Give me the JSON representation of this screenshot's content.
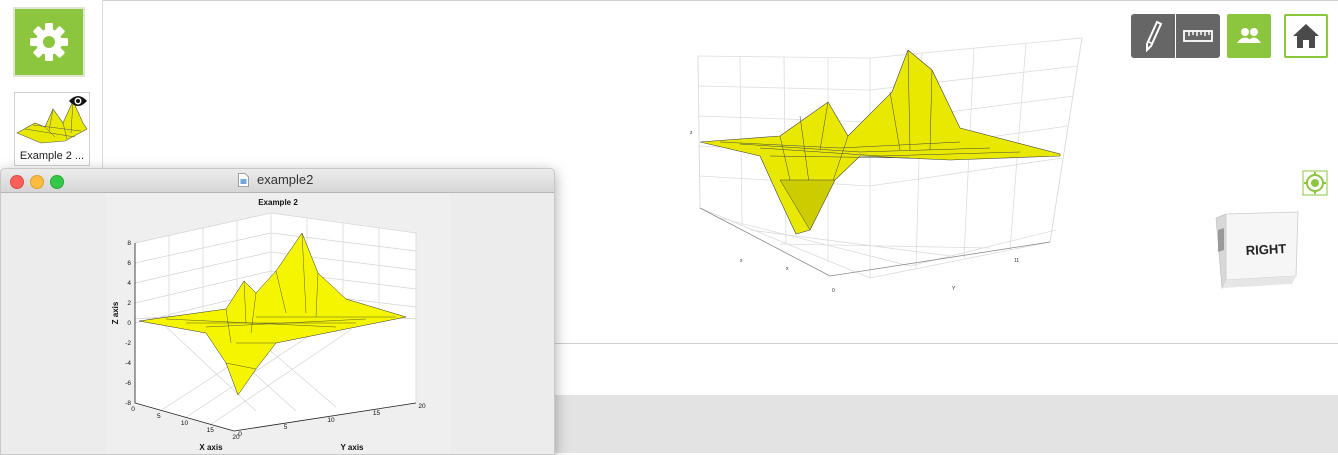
{
  "sidebar": {
    "settings_icon": "gear-icon",
    "thumbnail": {
      "label": "Example 2 ...",
      "badge_icon": "eye-icon"
    }
  },
  "toolbar": {
    "buttons": [
      {
        "icon": "pen-icon"
      },
      {
        "icon": "ruler-icon"
      },
      {
        "icon": "users-icon"
      },
      {
        "icon": "home-icon"
      }
    ]
  },
  "viewer": {
    "view_cube_label": "RIGHT",
    "axis_labels": {
      "x": "x",
      "y": "Y",
      "z": "z"
    },
    "tick_labels": {
      "x0": "0",
      "y_end": "11",
      "x_mid": "x",
      "x_b": "x"
    },
    "recenter_icon": "target-icon"
  },
  "window": {
    "title": "example2",
    "doc_icon": "document-icon",
    "buttons": [
      "close",
      "minimize",
      "zoom"
    ]
  },
  "chart_data": {
    "type": "surface",
    "title": "Example 2",
    "xlabel": "X axis",
    "ylabel": "Y axis",
    "zlabel": "Z axis",
    "z_ticks": [
      "8",
      "6",
      "4",
      "2",
      "0",
      "-2",
      "-4",
      "-6",
      "-8"
    ],
    "x_ticks": [
      "0",
      "5",
      "10",
      "15",
      "20"
    ],
    "y_ticks": [
      "0",
      "5",
      "10",
      "15",
      "20"
    ],
    "xlim": [
      0,
      20
    ],
    "ylim": [
      0,
      20
    ],
    "zlim": [
      -8,
      8
    ],
    "surface_color": "#ffff00",
    "grid": true
  },
  "colors": {
    "accent_green": "#8cc63f",
    "toolbar_gray": "#666666",
    "surface_yellow": "#f2f200"
  }
}
